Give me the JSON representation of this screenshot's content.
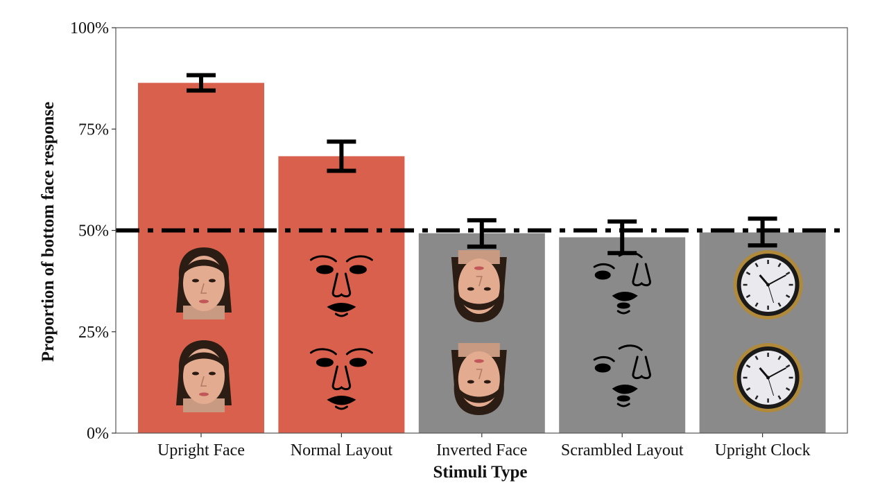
{
  "chart_data": {
    "type": "bar",
    "categories": [
      "Upright Face",
      "Normal Layout",
      "Inverted Face",
      "Scrambled Layout",
      "Upright Clock"
    ],
    "values": [
      86.4,
      68.3,
      49.3,
      48.3,
      49.5
    ],
    "error": [
      [
        84.5,
        88.3
      ],
      [
        64.7,
        71.9
      ],
      [
        46.0,
        52.5
      ],
      [
        44.4,
        52.2
      ],
      [
        46.3,
        52.9
      ]
    ],
    "bar_colors": [
      "#d9604c",
      "#d9604c",
      "#8a8a8a",
      "#8a8a8a",
      "#8a8a8a"
    ],
    "stimulus_icons": [
      "upright-face-photo-icon",
      "normal-layout-sketch-icon",
      "inverted-face-photo-icon",
      "scrambled-layout-sketch-icon",
      "upright-clock-icon"
    ],
    "reference_line": {
      "value": 50,
      "style": "dash-dot",
      "color": "#000000"
    },
    "xlabel": "Stimuli Type",
    "ylabel": "Proportion of bottom face response",
    "ylim": [
      0,
      100
    ],
    "yticks": [
      0,
      25,
      50,
      75,
      100
    ],
    "ytick_labels": [
      "0%",
      "25%",
      "50%",
      "75%",
      "100%"
    ],
    "grid": false,
    "legend": "none"
  }
}
